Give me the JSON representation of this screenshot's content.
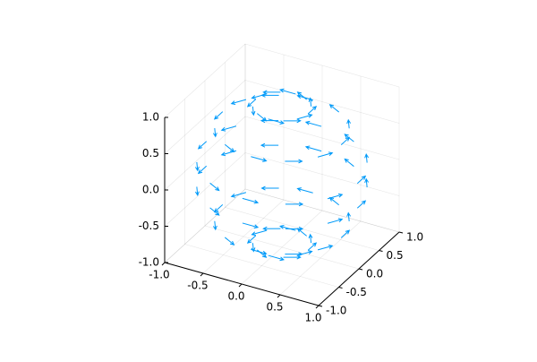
{
  "chart_data": {
    "type": "quiver3d",
    "color": "#009af9",
    "grid": true,
    "xlim": [
      -1,
      1
    ],
    "ylim": [
      -1,
      1
    ],
    "zlim": [
      -1,
      1
    ],
    "xticks": [
      {
        "value": -1,
        "label": "-1.0"
      },
      -0.5,
      {
        "value": 0,
        "label": "0.0"
      },
      0.5,
      {
        "value": 1,
        "label": "1.0"
      }
    ],
    "yticks": [
      {
        "value": -1,
        "label": "-1.0"
      },
      -0.5,
      {
        "value": 0,
        "label": "0.0"
      },
      0.5,
      {
        "value": 1,
        "label": "1.0"
      }
    ],
    "zticks": [
      {
        "value": -1,
        "label": "-1.0"
      },
      -0.5,
      {
        "value": 0,
        "label": "0.0"
      },
      0.5,
      {
        "value": 1,
        "label": "1.0"
      }
    ],
    "x": [
      0.34,
      0.29,
      0.17,
      0,
      -0.17,
      -0.29,
      -0.34,
      -0.29,
      -0.17,
      0,
      0.17,
      0.29,
      0.77,
      0.67,
      0.39,
      0,
      -0.39,
      -0.67,
      -0.77,
      -0.67,
      -0.39,
      0,
      0.39,
      0.67,
      0.98,
      0.85,
      0.49,
      0,
      -0.49,
      -0.85,
      -0.98,
      -0.85,
      -0.49,
      0,
      0.49,
      0.85,
      0.98,
      0.85,
      0.49,
      0,
      -0.49,
      -0.85,
      -0.98,
      -0.85,
      -0.49,
      0,
      0.49,
      0.85,
      0.77,
      0.67,
      0.39,
      0,
      -0.39,
      -0.67,
      -0.77,
      -0.67,
      -0.39,
      0,
      0.39,
      0.67,
      0.34,
      0.29,
      0.17,
      0,
      -0.17,
      -0.29,
      -0.34,
      -0.29,
      -0.17,
      0,
      0.17,
      0.29
    ],
    "y": [
      0,
      0.17,
      0.29,
      0.34,
      0.29,
      0.17,
      0,
      -0.17,
      -0.29,
      -0.34,
      -0.29,
      -0.17,
      0,
      0.39,
      0.67,
      0.77,
      0.67,
      0.39,
      0,
      -0.39,
      -0.67,
      -0.77,
      -0.67,
      -0.39,
      0,
      0.49,
      0.85,
      0.98,
      0.85,
      0.49,
      0,
      -0.49,
      -0.85,
      -0.98,
      -0.85,
      -0.49,
      0,
      0.49,
      0.85,
      0.98,
      0.85,
      0.49,
      0,
      -0.49,
      -0.85,
      -0.98,
      -0.85,
      -0.49,
      0,
      0.39,
      0.67,
      0.77,
      0.67,
      0.39,
      0,
      -0.39,
      -0.67,
      -0.77,
      -0.67,
      -0.39,
      0,
      0.17,
      0.29,
      0.34,
      0.29,
      0.17,
      0,
      -0.17,
      -0.29,
      -0.34,
      -0.29,
      -0.17
    ],
    "z": [
      0.94,
      0.94,
      0.94,
      0.94,
      0.94,
      0.94,
      0.94,
      0.94,
      0.94,
      0.94,
      0.94,
      0.94,
      0.64,
      0.64,
      0.64,
      0.64,
      0.64,
      0.64,
      0.64,
      0.64,
      0.64,
      0.64,
      0.64,
      0.64,
      0.17,
      0.17,
      0.17,
      0.17,
      0.17,
      0.17,
      0.17,
      0.17,
      0.17,
      0.17,
      0.17,
      0.17,
      -0.17,
      -0.17,
      -0.17,
      -0.17,
      -0.17,
      -0.17,
      -0.17,
      -0.17,
      -0.17,
      -0.17,
      -0.17,
      -0.17,
      -0.64,
      -0.64,
      -0.64,
      -0.64,
      -0.64,
      -0.64,
      -0.64,
      -0.64,
      -0.64,
      -0.64,
      -0.64,
      -0.64,
      -0.94,
      -0.94,
      -0.94,
      -0.94,
      -0.94,
      -0.94,
      -0.94,
      -0.94,
      -0.94,
      -0.94,
      -0.94,
      -0.94
    ],
    "u": [
      0,
      -0.1,
      -0.17,
      -0.2,
      -0.17,
      -0.1,
      0,
      0.1,
      0.17,
      0.2,
      0.17,
      0.1,
      0,
      -0.1,
      -0.17,
      -0.2,
      -0.17,
      -0.1,
      0,
      0.1,
      0.17,
      0.2,
      0.17,
      0.1,
      0,
      -0.1,
      -0.17,
      -0.2,
      -0.17,
      -0.1,
      0,
      0.1,
      0.17,
      0.2,
      0.17,
      0.1,
      0,
      -0.1,
      -0.17,
      -0.2,
      -0.17,
      -0.1,
      0,
      0.1,
      0.17,
      0.2,
      0.17,
      0.1,
      0,
      -0.1,
      -0.17,
      -0.2,
      -0.17,
      -0.1,
      0,
      0.1,
      0.17,
      0.2,
      0.17,
      0.1,
      0,
      -0.1,
      -0.17,
      -0.2,
      -0.17,
      -0.1,
      0,
      0.1,
      0.17,
      0.2,
      0.17,
      0.1
    ],
    "v": [
      0.2,
      0.17,
      0.1,
      0,
      -0.1,
      -0.17,
      -0.2,
      -0.17,
      -0.1,
      0,
      0.1,
      0.17,
      0.2,
      0.17,
      0.1,
      0,
      -0.1,
      -0.17,
      -0.2,
      -0.17,
      -0.1,
      0,
      0.1,
      0.17,
      0.2,
      0.17,
      0.1,
      0,
      -0.1,
      -0.17,
      -0.2,
      -0.17,
      -0.1,
      0,
      0.1,
      0.17,
      0.2,
      0.17,
      0.1,
      0,
      -0.1,
      -0.17,
      -0.2,
      -0.17,
      -0.1,
      0,
      0.1,
      0.17,
      0.2,
      0.17,
      0.1,
      0,
      -0.1,
      -0.17,
      -0.2,
      -0.17,
      -0.1,
      0,
      0.1,
      0.17,
      0.2,
      0.17,
      0.1,
      0,
      -0.1,
      -0.17,
      -0.2,
      -0.17,
      -0.1,
      0,
      0.1,
      0.17
    ],
    "w": [
      0,
      0,
      0,
      0,
      0,
      0,
      0,
      0,
      0,
      0,
      0,
      0,
      0,
      0,
      0,
      0,
      0,
      0,
      0,
      0,
      0,
      0,
      0,
      0,
      0,
      0,
      0,
      0,
      0,
      0,
      0,
      0,
      0,
      0,
      0,
      0,
      0,
      0,
      0,
      0,
      0,
      0,
      0,
      0,
      0,
      0,
      0,
      0,
      0,
      0,
      0,
      0,
      0,
      0,
      0,
      0,
      0,
      0,
      0,
      0,
      0,
      0,
      0,
      0,
      0,
      0,
      0,
      0,
      0,
      0,
      0,
      0
    ]
  }
}
